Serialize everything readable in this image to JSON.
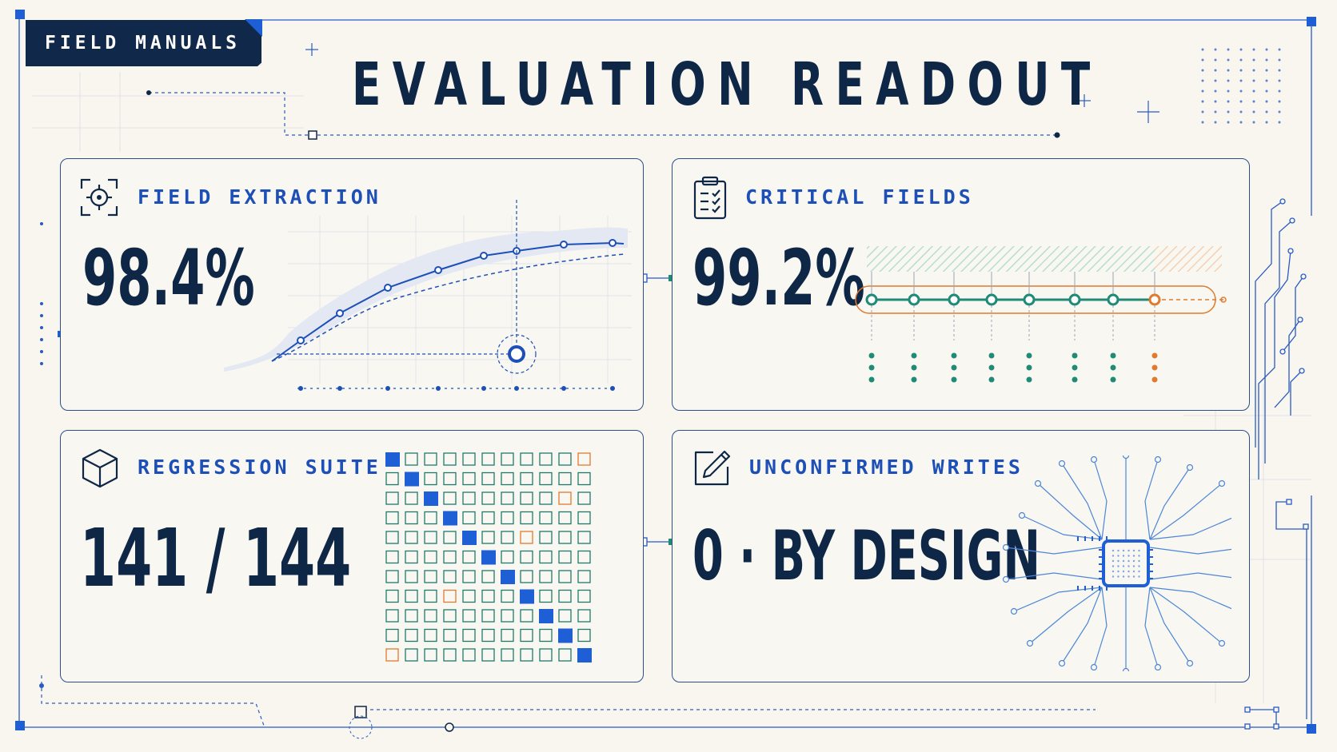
{
  "header": {
    "badge_label": "FIELD MANUALS",
    "title": "EVALUATION READOUT"
  },
  "panels": {
    "field_extraction": {
      "label": "FIELD EXTRACTION",
      "value": "98.4%",
      "icon": "target-icon"
    },
    "critical_fields": {
      "label": "CRITICAL FIELDS",
      "value": "99.2%",
      "icon": "clipboard-check-icon"
    },
    "regression_suite": {
      "label": "REGRESSION SUITE",
      "value": "141 / 144",
      "icon": "cube-icon"
    },
    "unconfirmed_writes": {
      "label": "UNCONFIRMED WRITES",
      "value": "0 · BY DESIGN",
      "icon": "pencil-edit-icon"
    }
  },
  "colors": {
    "navy": "#0f2747",
    "blue": "#1d4fb8",
    "teal": "#1f8a76",
    "orange": "#e07a2e",
    "background": "#f8f6ef"
  }
}
